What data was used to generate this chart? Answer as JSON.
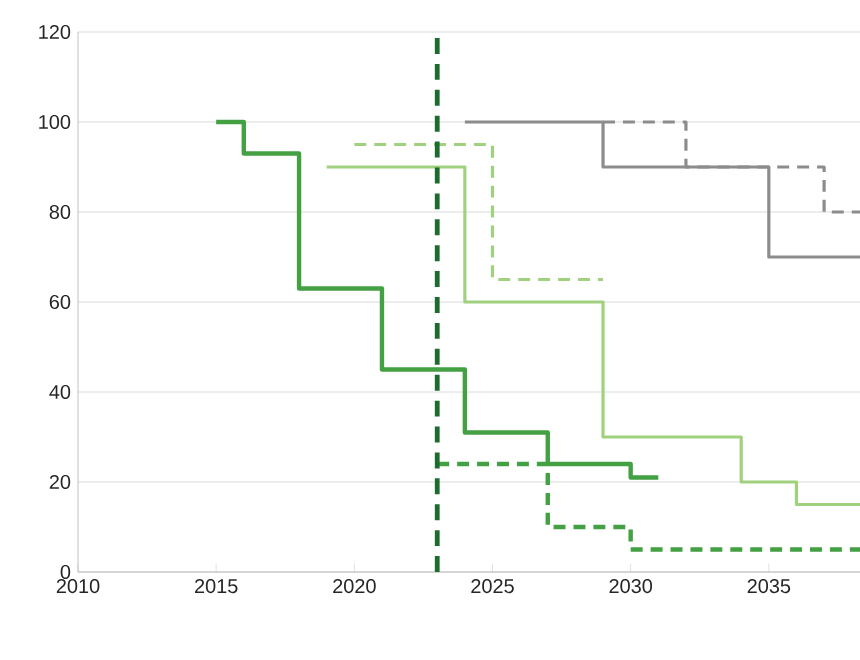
{
  "chart_data": {
    "type": "step",
    "xlim": [
      2010,
      2038.3
    ],
    "ylim": [
      0,
      120
    ],
    "xticks": [
      2010,
      2015,
      2020,
      2025,
      2030,
      2035
    ],
    "yticks": [
      0,
      20,
      40,
      60,
      80,
      100,
      120
    ],
    "grid": "y",
    "marker": "none",
    "series": [
      {
        "color": "#43a043",
        "line_style": "solid",
        "x": [
          2015,
          2016,
          2018,
          2021,
          2024,
          2027,
          2030,
          2031
        ],
        "values": [
          100,
          93,
          63,
          45,
          31,
          24,
          21,
          21
        ]
      },
      {
        "color": "#43a043",
        "line_style": "dashed",
        "x": [
          2023,
          2027,
          2030,
          2038.3
        ],
        "values": [
          24,
          10,
          5,
          5
        ]
      },
      {
        "color": "#9fd17f",
        "line_style": "solid",
        "x": [
          2019,
          2024,
          2029,
          2034,
          2036,
          2038.3
        ],
        "values": [
          90,
          60,
          30,
          20,
          15,
          15
        ]
      },
      {
        "color": "#9fd17f",
        "line_style": "dashed",
        "x": [
          2020,
          2025,
          2029
        ],
        "values": [
          95,
          65,
          65
        ]
      },
      {
        "color": "#8c8c8c",
        "line_style": "solid",
        "x": [
          2024,
          2029,
          2035,
          2038.3
        ],
        "values": [
          100,
          90,
          70,
          70
        ]
      },
      {
        "color": "#8c8c8c",
        "line_style": "dashed",
        "x": [
          2029,
          2032,
          2037,
          2038.3
        ],
        "values": [
          100,
          90,
          80,
          80
        ]
      }
    ],
    "ref_lines": [
      {
        "axis": "x",
        "value": 2023,
        "color": "#1e6b30",
        "line_style": "dashed"
      }
    ]
  }
}
